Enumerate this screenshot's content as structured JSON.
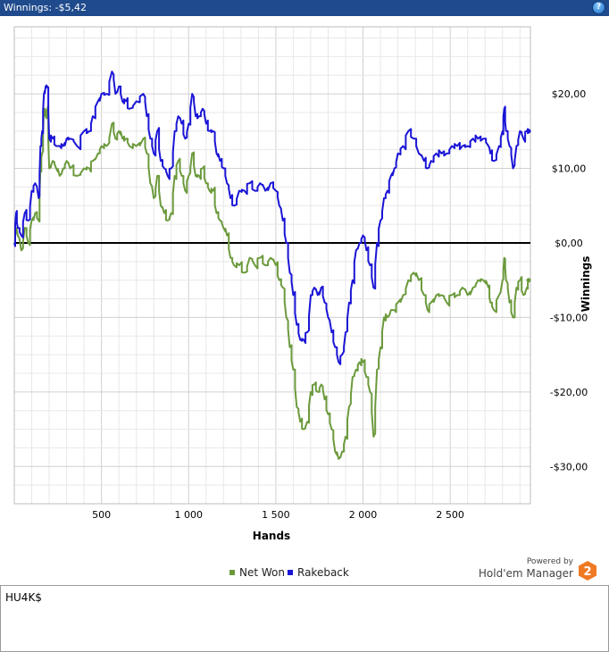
{
  "window": {
    "title": "Winnings: -$5,42",
    "help_icon": "question-icon"
  },
  "chart_data": {
    "type": "line",
    "ylabel": "Winnings",
    "xlabel": "Hands",
    "xlim": [
      0,
      2960
    ],
    "ylim": [
      -35,
      29
    ],
    "x_ticks": [
      500,
      1000,
      1500,
      2000,
      2500
    ],
    "x_tick_labels": [
      "500",
      "1 000",
      "1 500",
      "2 000",
      "2 500"
    ],
    "y_ticks": [
      20,
      10,
      0,
      -10,
      -20,
      -30
    ],
    "y_tick_labels": [
      "$20,00",
      "$10,00",
      "$0,00",
      "-$10,00",
      "-$20,00",
      "-$30,00"
    ],
    "grid": true,
    "legend_position": "bottom-center",
    "series": [
      {
        "name": "Net Won",
        "color": "#6b9a3c",
        "points": [
          [
            0,
            0
          ],
          [
            10,
            2
          ],
          [
            20,
            1
          ],
          [
            40,
            -1
          ],
          [
            60,
            2
          ],
          [
            80,
            0
          ],
          [
            100,
            3
          ],
          [
            120,
            4
          ],
          [
            140,
            3
          ],
          [
            150,
            10
          ],
          [
            160,
            12
          ],
          [
            170,
            18
          ],
          [
            180,
            17
          ],
          [
            190,
            18
          ],
          [
            200,
            10
          ],
          [
            220,
            11
          ],
          [
            240,
            10
          ],
          [
            260,
            9
          ],
          [
            280,
            10
          ],
          [
            300,
            11
          ],
          [
            320,
            10
          ],
          [
            360,
            9
          ],
          [
            400,
            10
          ],
          [
            430,
            10
          ],
          [
            450,
            11
          ],
          [
            480,
            12
          ],
          [
            500,
            13
          ],
          [
            530,
            13
          ],
          [
            560,
            16
          ],
          [
            580,
            14
          ],
          [
            600,
            15
          ],
          [
            620,
            14
          ],
          [
            640,
            14
          ],
          [
            660,
            13
          ],
          [
            700,
            13
          ],
          [
            740,
            14
          ],
          [
            760,
            12
          ],
          [
            780,
            8
          ],
          [
            800,
            6
          ],
          [
            820,
            9
          ],
          [
            840,
            5
          ],
          [
            860,
            4
          ],
          [
            880,
            3
          ],
          [
            900,
            4
          ],
          [
            920,
            9
          ],
          [
            940,
            11
          ],
          [
            960,
            9
          ],
          [
            980,
            7
          ],
          [
            1000,
            9
          ],
          [
            1020,
            12
          ],
          [
            1040,
            9
          ],
          [
            1060,
            9
          ],
          [
            1080,
            10
          ],
          [
            1100,
            8
          ],
          [
            1120,
            7
          ],
          [
            1140,
            7
          ],
          [
            1160,
            4
          ],
          [
            1180,
            3
          ],
          [
            1200,
            2
          ],
          [
            1220,
            1
          ],
          [
            1240,
            -2
          ],
          [
            1260,
            -3
          ],
          [
            1290,
            -3
          ],
          [
            1320,
            -4
          ],
          [
            1350,
            -2
          ],
          [
            1380,
            -3
          ],
          [
            1410,
            -2
          ],
          [
            1440,
            -3
          ],
          [
            1470,
            -2
          ],
          [
            1500,
            -3
          ],
          [
            1520,
            -5
          ],
          [
            1540,
            -6
          ],
          [
            1560,
            -10
          ],
          [
            1580,
            -14
          ],
          [
            1600,
            -17
          ],
          [
            1620,
            -22
          ],
          [
            1640,
            -24
          ],
          [
            1660,
            -25
          ],
          [
            1680,
            -24
          ],
          [
            1700,
            -20
          ],
          [
            1720,
            -19
          ],
          [
            1740,
            -20
          ],
          [
            1760,
            -19
          ],
          [
            1780,
            -21
          ],
          [
            1800,
            -23
          ],
          [
            1820,
            -25
          ],
          [
            1840,
            -28
          ],
          [
            1860,
            -29
          ],
          [
            1880,
            -28
          ],
          [
            1900,
            -26
          ],
          [
            1920,
            -22
          ],
          [
            1940,
            -18
          ],
          [
            1960,
            -17
          ],
          [
            1980,
            -16
          ],
          [
            2000,
            -16
          ],
          [
            2020,
            -18
          ],
          [
            2040,
            -20
          ],
          [
            2060,
            -26
          ],
          [
            2080,
            -17
          ],
          [
            2100,
            -14
          ],
          [
            2120,
            -10
          ],
          [
            2140,
            -10
          ],
          [
            2160,
            -9
          ],
          [
            2180,
            -9
          ],
          [
            2200,
            -8
          ],
          [
            2230,
            -7
          ],
          [
            2260,
            -5
          ],
          [
            2290,
            -4
          ],
          [
            2320,
            -5
          ],
          [
            2350,
            -7
          ],
          [
            2370,
            -9
          ],
          [
            2390,
            -8
          ],
          [
            2420,
            -7
          ],
          [
            2450,
            -7
          ],
          [
            2480,
            -8
          ],
          [
            2510,
            -7
          ],
          [
            2540,
            -7
          ],
          [
            2570,
            -6
          ],
          [
            2600,
            -7
          ],
          [
            2630,
            -6
          ],
          [
            2660,
            -5
          ],
          [
            2690,
            -5
          ],
          [
            2720,
            -6
          ],
          [
            2730,
            -8
          ],
          [
            2750,
            -9
          ],
          [
            2780,
            -7
          ],
          [
            2800,
            -5
          ],
          [
            2810,
            -2
          ],
          [
            2820,
            -5
          ],
          [
            2840,
            -8
          ],
          [
            2860,
            -10
          ],
          [
            2880,
            -6
          ],
          [
            2900,
            -5
          ],
          [
            2920,
            -7
          ],
          [
            2940,
            -6
          ],
          [
            2950,
            -5
          ]
        ]
      },
      {
        "name": "Rakeback",
        "color": "#1a14d6",
        "points": [
          [
            0,
            0
          ],
          [
            10,
            4
          ],
          [
            20,
            2
          ],
          [
            40,
            1
          ],
          [
            60,
            4
          ],
          [
            80,
            3
          ],
          [
            100,
            7
          ],
          [
            120,
            8
          ],
          [
            140,
            6
          ],
          [
            150,
            13
          ],
          [
            160,
            15
          ],
          [
            170,
            20
          ],
          [
            180,
            21
          ],
          [
            190,
            21
          ],
          [
            200,
            14
          ],
          [
            220,
            14
          ],
          [
            240,
            13
          ],
          [
            260,
            13
          ],
          [
            280,
            13
          ],
          [
            300,
            14
          ],
          [
            320,
            14
          ],
          [
            360,
            13
          ],
          [
            400,
            15
          ],
          [
            430,
            15
          ],
          [
            450,
            17
          ],
          [
            480,
            19
          ],
          [
            500,
            20
          ],
          [
            530,
            20
          ],
          [
            560,
            23
          ],
          [
            580,
            20
          ],
          [
            600,
            21
          ],
          [
            620,
            19
          ],
          [
            640,
            19
          ],
          [
            660,
            18
          ],
          [
            700,
            19
          ],
          [
            740,
            20
          ],
          [
            760,
            17
          ],
          [
            780,
            14
          ],
          [
            800,
            12
          ],
          [
            820,
            15
          ],
          [
            840,
            11
          ],
          [
            860,
            10
          ],
          [
            880,
            9
          ],
          [
            900,
            10
          ],
          [
            920,
            15
          ],
          [
            940,
            17
          ],
          [
            960,
            16
          ],
          [
            980,
            14
          ],
          [
            1000,
            16
          ],
          [
            1020,
            20
          ],
          [
            1040,
            17
          ],
          [
            1060,
            17
          ],
          [
            1080,
            18
          ],
          [
            1100,
            16
          ],
          [
            1120,
            15
          ],
          [
            1140,
            15
          ],
          [
            1160,
            12
          ],
          [
            1180,
            11
          ],
          [
            1200,
            10
          ],
          [
            1220,
            8
          ],
          [
            1240,
            6
          ],
          [
            1260,
            5
          ],
          [
            1290,
            7
          ],
          [
            1320,
            7
          ],
          [
            1350,
            8
          ],
          [
            1380,
            7
          ],
          [
            1410,
            8
          ],
          [
            1440,
            7
          ],
          [
            1470,
            8
          ],
          [
            1500,
            7
          ],
          [
            1520,
            5
          ],
          [
            1540,
            3
          ],
          [
            1560,
            0
          ],
          [
            1580,
            -4
          ],
          [
            1600,
            -7
          ],
          [
            1620,
            -11
          ],
          [
            1640,
            -13
          ],
          [
            1660,
            -13
          ],
          [
            1680,
            -12
          ],
          [
            1700,
            -7
          ],
          [
            1720,
            -6
          ],
          [
            1740,
            -7
          ],
          [
            1760,
            -6
          ],
          [
            1780,
            -8
          ],
          [
            1800,
            -10
          ],
          [
            1820,
            -12
          ],
          [
            1840,
            -14
          ],
          [
            1860,
            -16
          ],
          [
            1880,
            -15
          ],
          [
            1900,
            -12
          ],
          [
            1920,
            -8
          ],
          [
            1940,
            -5
          ],
          [
            1960,
            -1
          ],
          [
            1980,
            0
          ],
          [
            2000,
            1
          ],
          [
            2020,
            -1
          ],
          [
            2040,
            -3
          ],
          [
            2060,
            -6
          ],
          [
            2080,
            0
          ],
          [
            2100,
            3
          ],
          [
            2120,
            6
          ],
          [
            2140,
            7
          ],
          [
            2160,
            9
          ],
          [
            2180,
            10
          ],
          [
            2200,
            12
          ],
          [
            2230,
            13
          ],
          [
            2260,
            15
          ],
          [
            2290,
            14
          ],
          [
            2320,
            12
          ],
          [
            2350,
            11
          ],
          [
            2370,
            10
          ],
          [
            2390,
            11
          ],
          [
            2420,
            12
          ],
          [
            2450,
            12
          ],
          [
            2480,
            12
          ],
          [
            2510,
            13
          ],
          [
            2540,
            13
          ],
          [
            2570,
            13
          ],
          [
            2600,
            13
          ],
          [
            2630,
            14
          ],
          [
            2660,
            14
          ],
          [
            2690,
            14
          ],
          [
            2720,
            13
          ],
          [
            2730,
            12
          ],
          [
            2750,
            11
          ],
          [
            2780,
            13
          ],
          [
            2800,
            15
          ],
          [
            2810,
            18
          ],
          [
            2820,
            15
          ],
          [
            2840,
            13
          ],
          [
            2860,
            10
          ],
          [
            2880,
            13
          ],
          [
            2900,
            15
          ],
          [
            2920,
            14
          ],
          [
            2940,
            15
          ],
          [
            2950,
            15
          ]
        ]
      }
    ],
    "zero_line": true
  },
  "legend": {
    "items": [
      {
        "label": "Net Won",
        "color": "#6b9a3c"
      },
      {
        "label": "Rakeback",
        "color": "#1a14d6"
      }
    ]
  },
  "branding": {
    "powered_by": "Powered by",
    "product": "Hold'em Manager",
    "logo_number": "2",
    "logo_color": "#f07a24"
  },
  "notes": {
    "text": "HU4K$"
  }
}
